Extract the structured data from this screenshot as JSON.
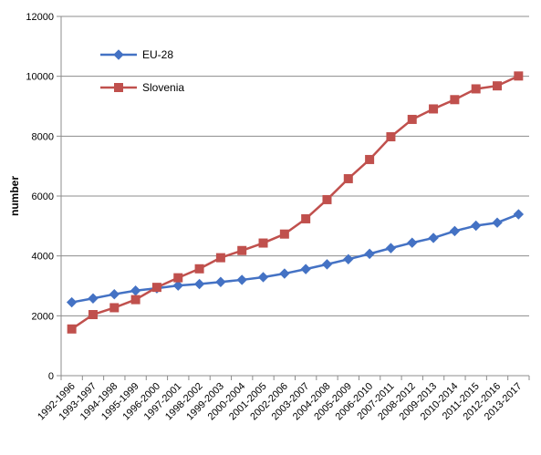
{
  "chart_data": {
    "type": "line",
    "title": "",
    "xlabel": "",
    "ylabel": "number",
    "ylim": [
      0,
      12000
    ],
    "yticks": [
      0,
      2000,
      4000,
      6000,
      8000,
      10000,
      12000
    ],
    "grid": true,
    "legend_position": "top-left",
    "categories": [
      "1992-1996",
      "1993-1997",
      "1994-1998",
      "1995-1999",
      "1996-2000",
      "1997-2001",
      "1998-2002",
      "1999-2003",
      "2000-2004",
      "2001-2005",
      "2002-2006",
      "2003-2007",
      "2004-2008",
      "2005-2009",
      "2006-2010",
      "2007-2011",
      "2008-2012",
      "2009-2013",
      "2010-2014",
      "2011-2015",
      "2012-2016",
      "2013-2017"
    ],
    "series": [
      {
        "name": "EU-28",
        "color": "#4472C4",
        "marker": "diamond",
        "values": [
          2450,
          2580,
          2720,
          2840,
          2920,
          3010,
          3060,
          3130,
          3200,
          3290,
          3410,
          3560,
          3720,
          3890,
          4070,
          4260,
          4440,
          4600,
          4830,
          5010,
          5110,
          5390
        ]
      },
      {
        "name": "Slovenia",
        "color": "#C0504D",
        "marker": "square",
        "values": [
          1560,
          2040,
          2270,
          2540,
          2950,
          3270,
          3570,
          3940,
          4180,
          4430,
          4730,
          5240,
          5880,
          6580,
          7220,
          7980,
          8560,
          8910,
          9220,
          9580,
          9680,
          10010
        ]
      }
    ]
  }
}
